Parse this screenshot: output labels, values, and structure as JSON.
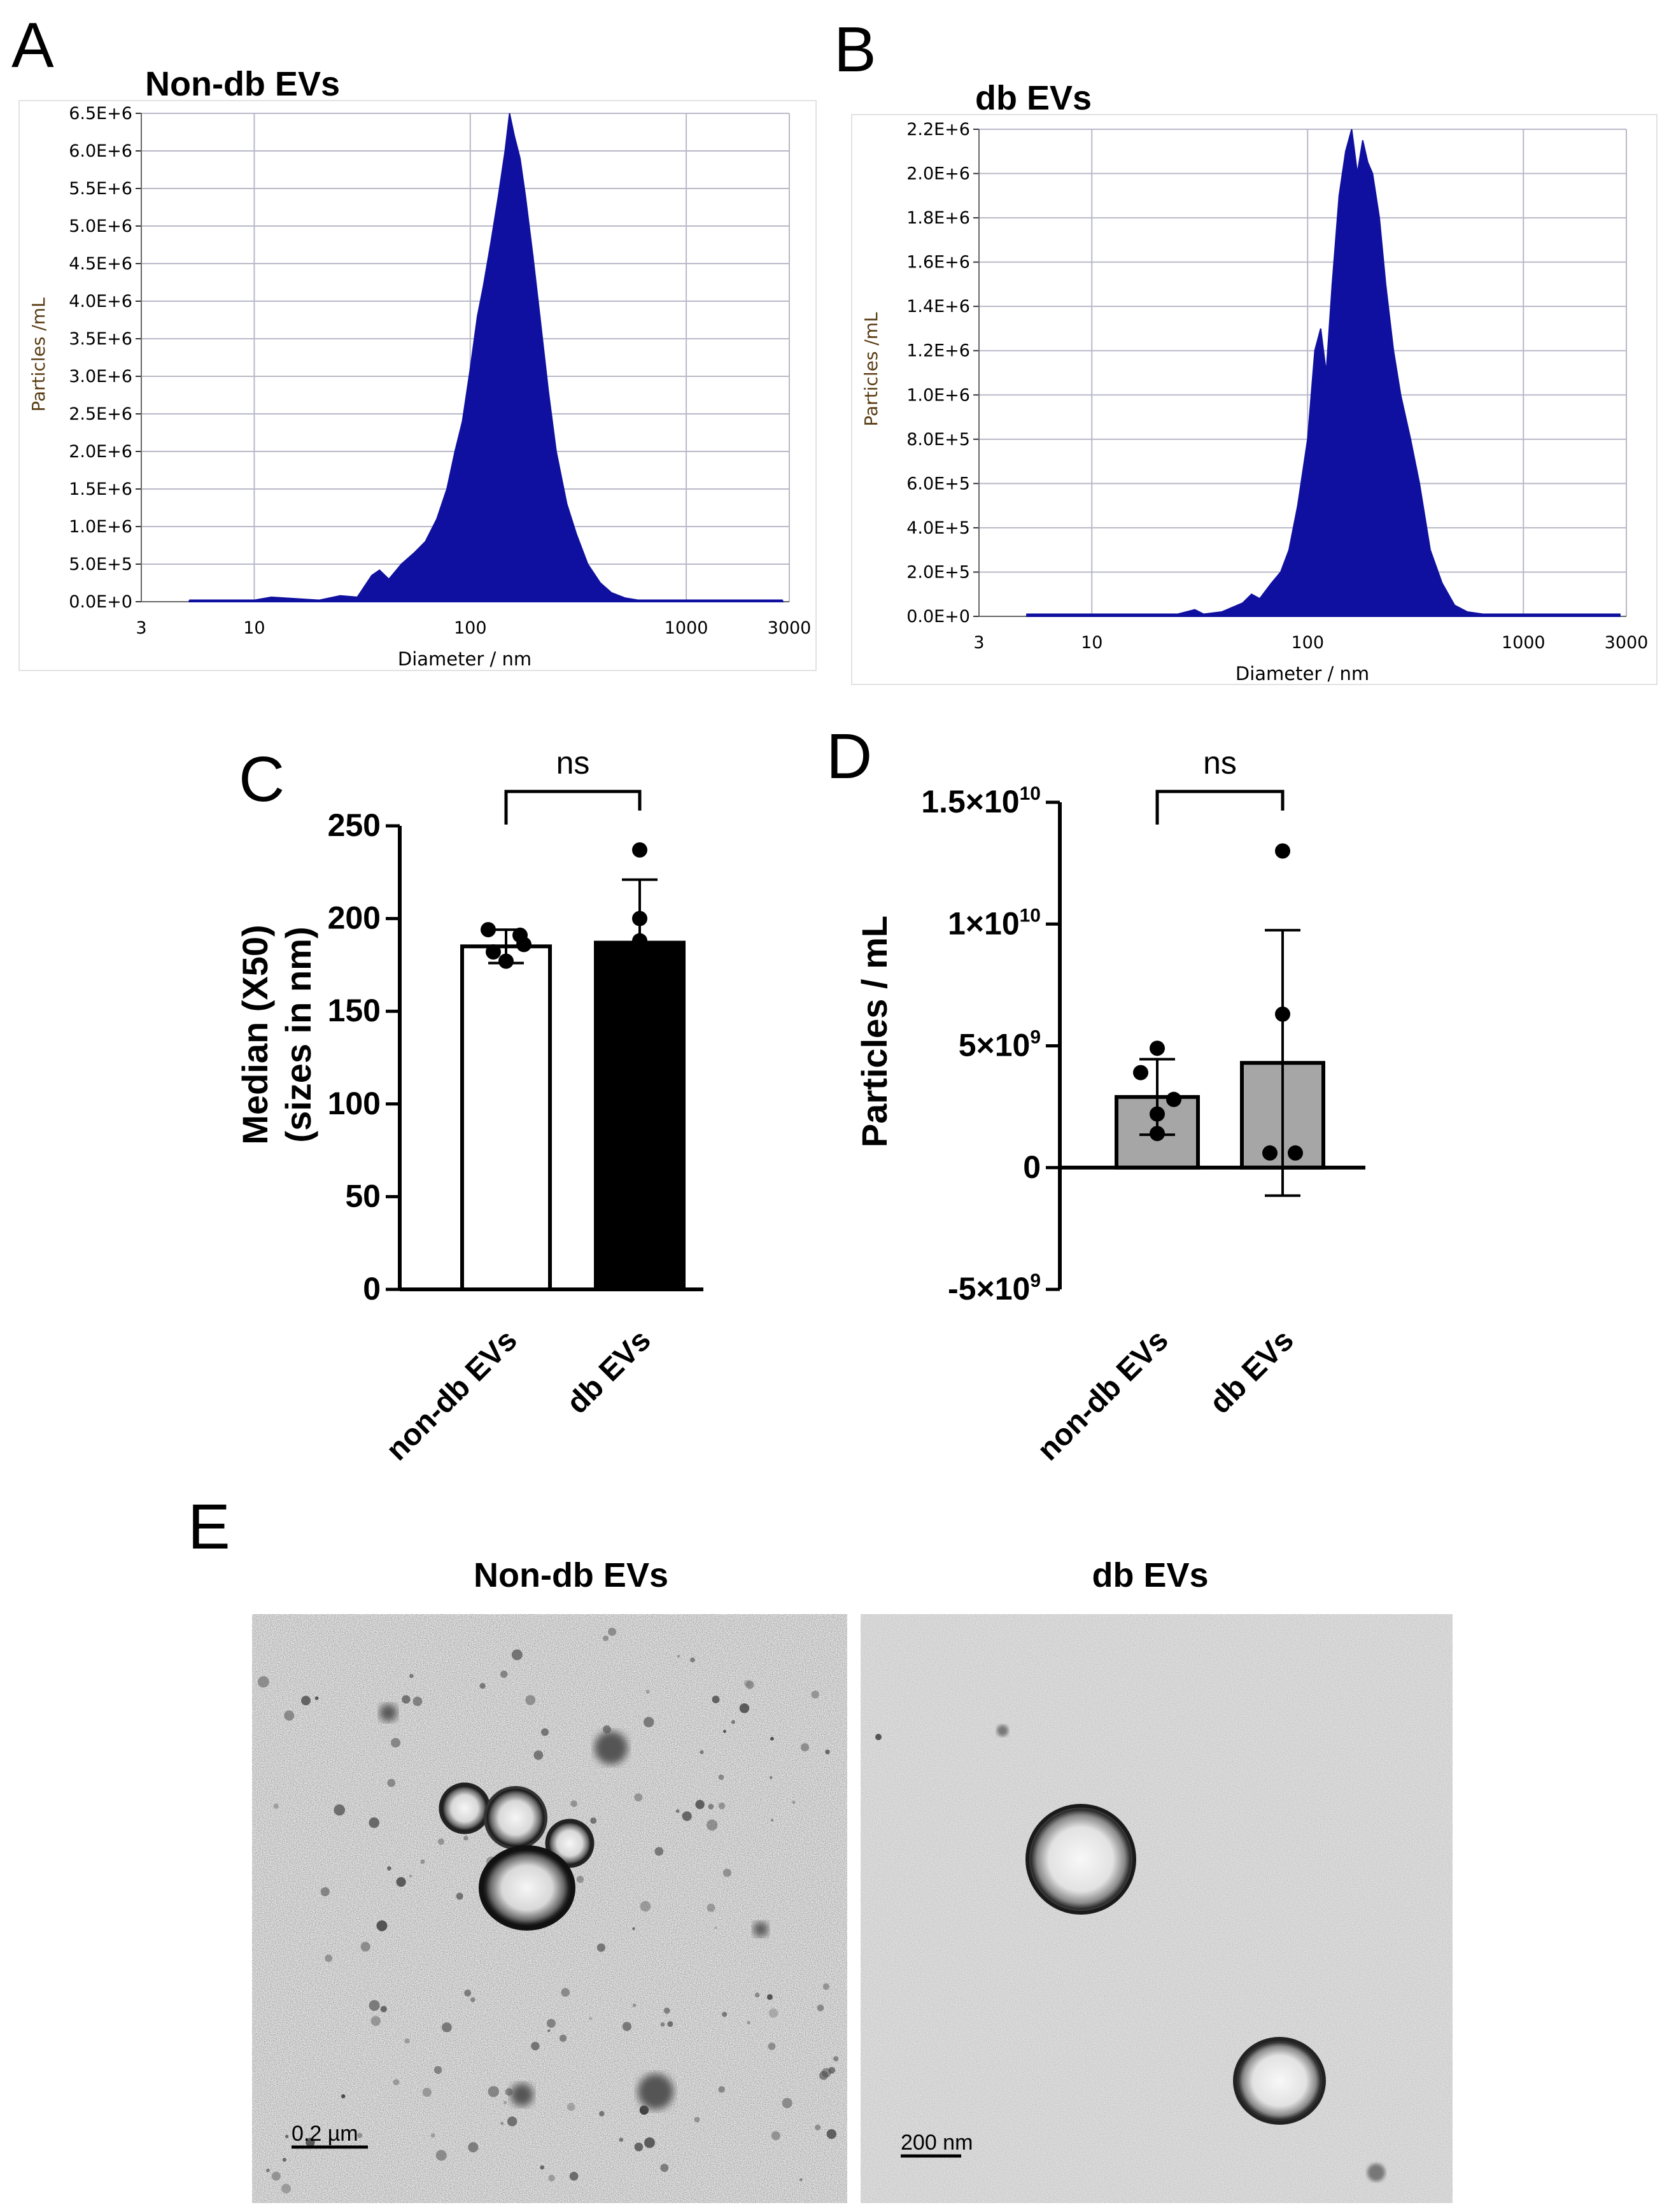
{
  "panel_letters": [
    "A",
    "B",
    "C",
    "D",
    "E"
  ],
  "chart_data": [
    {
      "id": "A",
      "type": "area",
      "title": "Non-db EVs",
      "xlabel": "Diameter / nm",
      "ylabel": "Particles /mL",
      "x_scale": "log",
      "xlim": [
        3,
        3000
      ],
      "x_ticks": [
        3,
        10,
        100,
        1000,
        3000
      ],
      "x_tick_labels": [
        "3",
        "10",
        "100",
        "1000",
        "3000"
      ],
      "ylim": [
        0,
        6500000
      ],
      "y_tick_labels": [
        "0.0E+0",
        "5.0E+5",
        "1.0E+6",
        "1.5E+6",
        "2.0E+6",
        "2.5E+6",
        "3.0E+6",
        "3.5E+6",
        "4.0E+6",
        "4.5E+6",
        "5.0E+6",
        "5.5E+6",
        "6.0E+6",
        "6.5E+6"
      ],
      "grid": true,
      "color": "#1010a0",
      "x": [
        5,
        10,
        12,
        20,
        25,
        30,
        35,
        38,
        42,
        48,
        55,
        62,
        70,
        78,
        85,
        92,
        100,
        108,
        115,
        125,
        135,
        145,
        152,
        160,
        170,
        180,
        195,
        210,
        230,
        250,
        280,
        310,
        350,
        400,
        450,
        520,
        600,
        700,
        1000,
        2800
      ],
      "values": [
        10000,
        20000,
        60000,
        20000,
        80000,
        60000,
        350000,
        420000,
        300000,
        500000,
        650000,
        800000,
        1100000,
        1500000,
        2000000,
        2400000,
        3100000,
        3800000,
        4200000,
        4800000,
        5400000,
        6000000,
        6500000,
        6200000,
        5900000,
        5400000,
        4600000,
        3800000,
        2800000,
        2000000,
        1300000,
        900000,
        500000,
        250000,
        120000,
        50000,
        20000,
        10000,
        5000,
        5000
      ]
    },
    {
      "id": "B",
      "type": "area",
      "title": "db EVs",
      "xlabel": "Diameter / nm",
      "ylabel": "Particles /mL",
      "x_scale": "log",
      "xlim": [
        3,
        3000
      ],
      "x_ticks": [
        3,
        10,
        100,
        1000,
        3000
      ],
      "x_tick_labels": [
        "3",
        "10",
        "100",
        "1000",
        "3000"
      ],
      "ylim": [
        0,
        2200000
      ],
      "y_tick_labels": [
        "0.0E+0",
        "2.0E+5",
        "4.0E+5",
        "6.0E+5",
        "8.0E+5",
        "1.0E+6",
        "1.2E+6",
        "1.4E+6",
        "1.6E+6",
        "1.8E+6",
        "2.0E+6",
        "2.2E+6"
      ],
      "grid": true,
      "color": "#1010a0",
      "x": [
        5,
        25,
        30,
        33,
        40,
        50,
        55,
        60,
        68,
        75,
        82,
        90,
        100,
        108,
        115,
        122,
        130,
        140,
        150,
        160,
        170,
        180,
        190,
        200,
        215,
        230,
        250,
        270,
        300,
        330,
        370,
        420,
        480,
        550,
        650,
        800,
        1000,
        2800
      ],
      "values": [
        10000,
        10000,
        30000,
        10000,
        20000,
        60000,
        100000,
        80000,
        150000,
        200000,
        300000,
        500000,
        800000,
        1200000,
        1300000,
        1100000,
        1500000,
        1900000,
        2100000,
        2200000,
        2000000,
        2150000,
        2050000,
        2000000,
        1800000,
        1500000,
        1200000,
        1000000,
        800000,
        600000,
        300000,
        150000,
        50000,
        20000,
        10000,
        10000,
        10000,
        10000
      ]
    },
    {
      "id": "C",
      "type": "bar",
      "categories": [
        "non-db EVs",
        "db EVs"
      ],
      "values": [
        185,
        187
      ],
      "error": [
        9,
        34
      ],
      "points": [
        [
          194,
          191,
          186,
          182,
          177
        ],
        [
          237,
          200,
          188
        ]
      ],
      "ylabel_line1": "Median (X50)",
      "ylabel_line2": "(sizes in nm)",
      "ylim": [
        0,
        250
      ],
      "y_tick_labels": [
        "0",
        "50",
        "100",
        "150",
        "200",
        "250"
      ],
      "bar_colors": [
        "#ffffff",
        "#000000"
      ],
      "significance": "ns"
    },
    {
      "id": "D",
      "type": "bar",
      "categories": [
        "non-db EVs",
        "db EVs"
      ],
      "values": [
        2900000000,
        4300000000
      ],
      "error": [
        1550000000,
        5450000000
      ],
      "points": [
        [
          4900000000,
          3900000000,
          2800000000,
          2200000000,
          1400000000
        ],
        [
          13000000000,
          6300000000,
          600000000,
          600000000
        ]
      ],
      "ylabel": "Particles / mL",
      "ylim": [
        -5000000000,
        15000000000
      ],
      "y_ticks": [
        {
          "mantissa": "1.5×10",
          "exp": "10"
        },
        {
          "mantissa": "1×10",
          "exp": "10"
        },
        {
          "mantissa": "5×10",
          "exp": "9"
        },
        {
          "mantissa": "0",
          "exp": ""
        },
        {
          "mantissa": "-5×10",
          "exp": "9"
        }
      ],
      "bar_color": "#a6a6a6",
      "significance": "ns"
    }
  ],
  "tem": {
    "left": {
      "title": "Non-db EVs",
      "scale_bar": "0.2 µm"
    },
    "right": {
      "title": "db EVs",
      "scale_bar": "200 nm"
    }
  }
}
